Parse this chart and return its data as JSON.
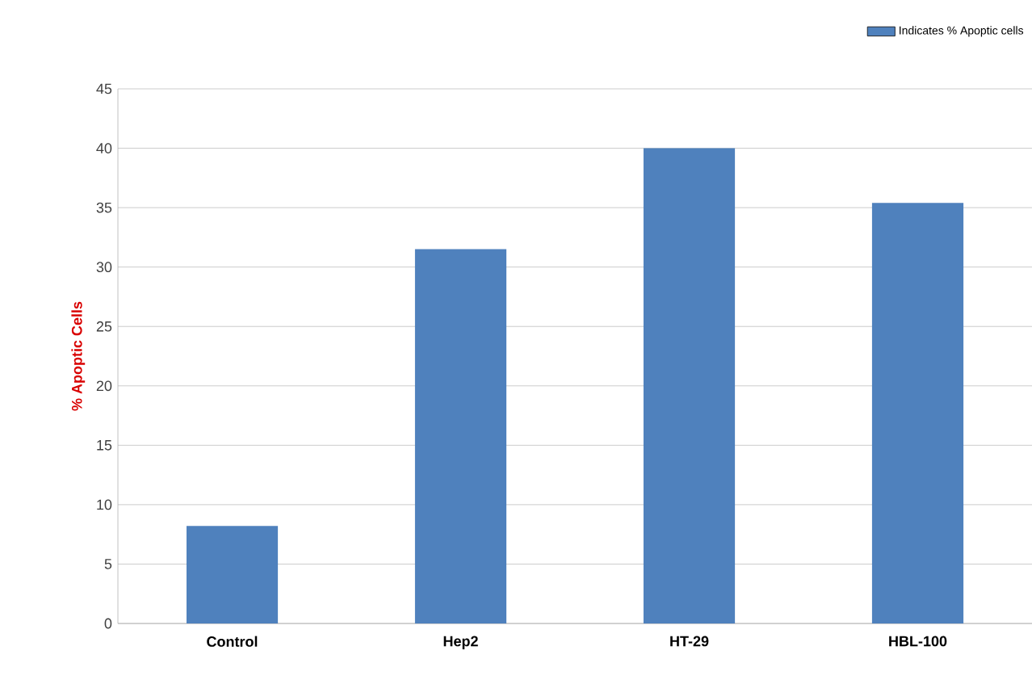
{
  "chart_data": {
    "type": "bar",
    "ylabel": "% Apoptic Cells",
    "categories": [
      "Control",
      "Hep2",
      "HT-29",
      "HBL-100"
    ],
    "series": [
      {
        "name": "Indicates % Apoptic cells",
        "color": "#4f81bd",
        "values": [
          8.2,
          31.5,
          40,
          35.4
        ]
      }
    ],
    "ylim": [
      0,
      45
    ],
    "yticks": [
      0,
      5,
      10,
      15,
      20,
      25,
      30,
      35,
      40,
      45
    ],
    "grid": "y",
    "legend": "top right"
  }
}
